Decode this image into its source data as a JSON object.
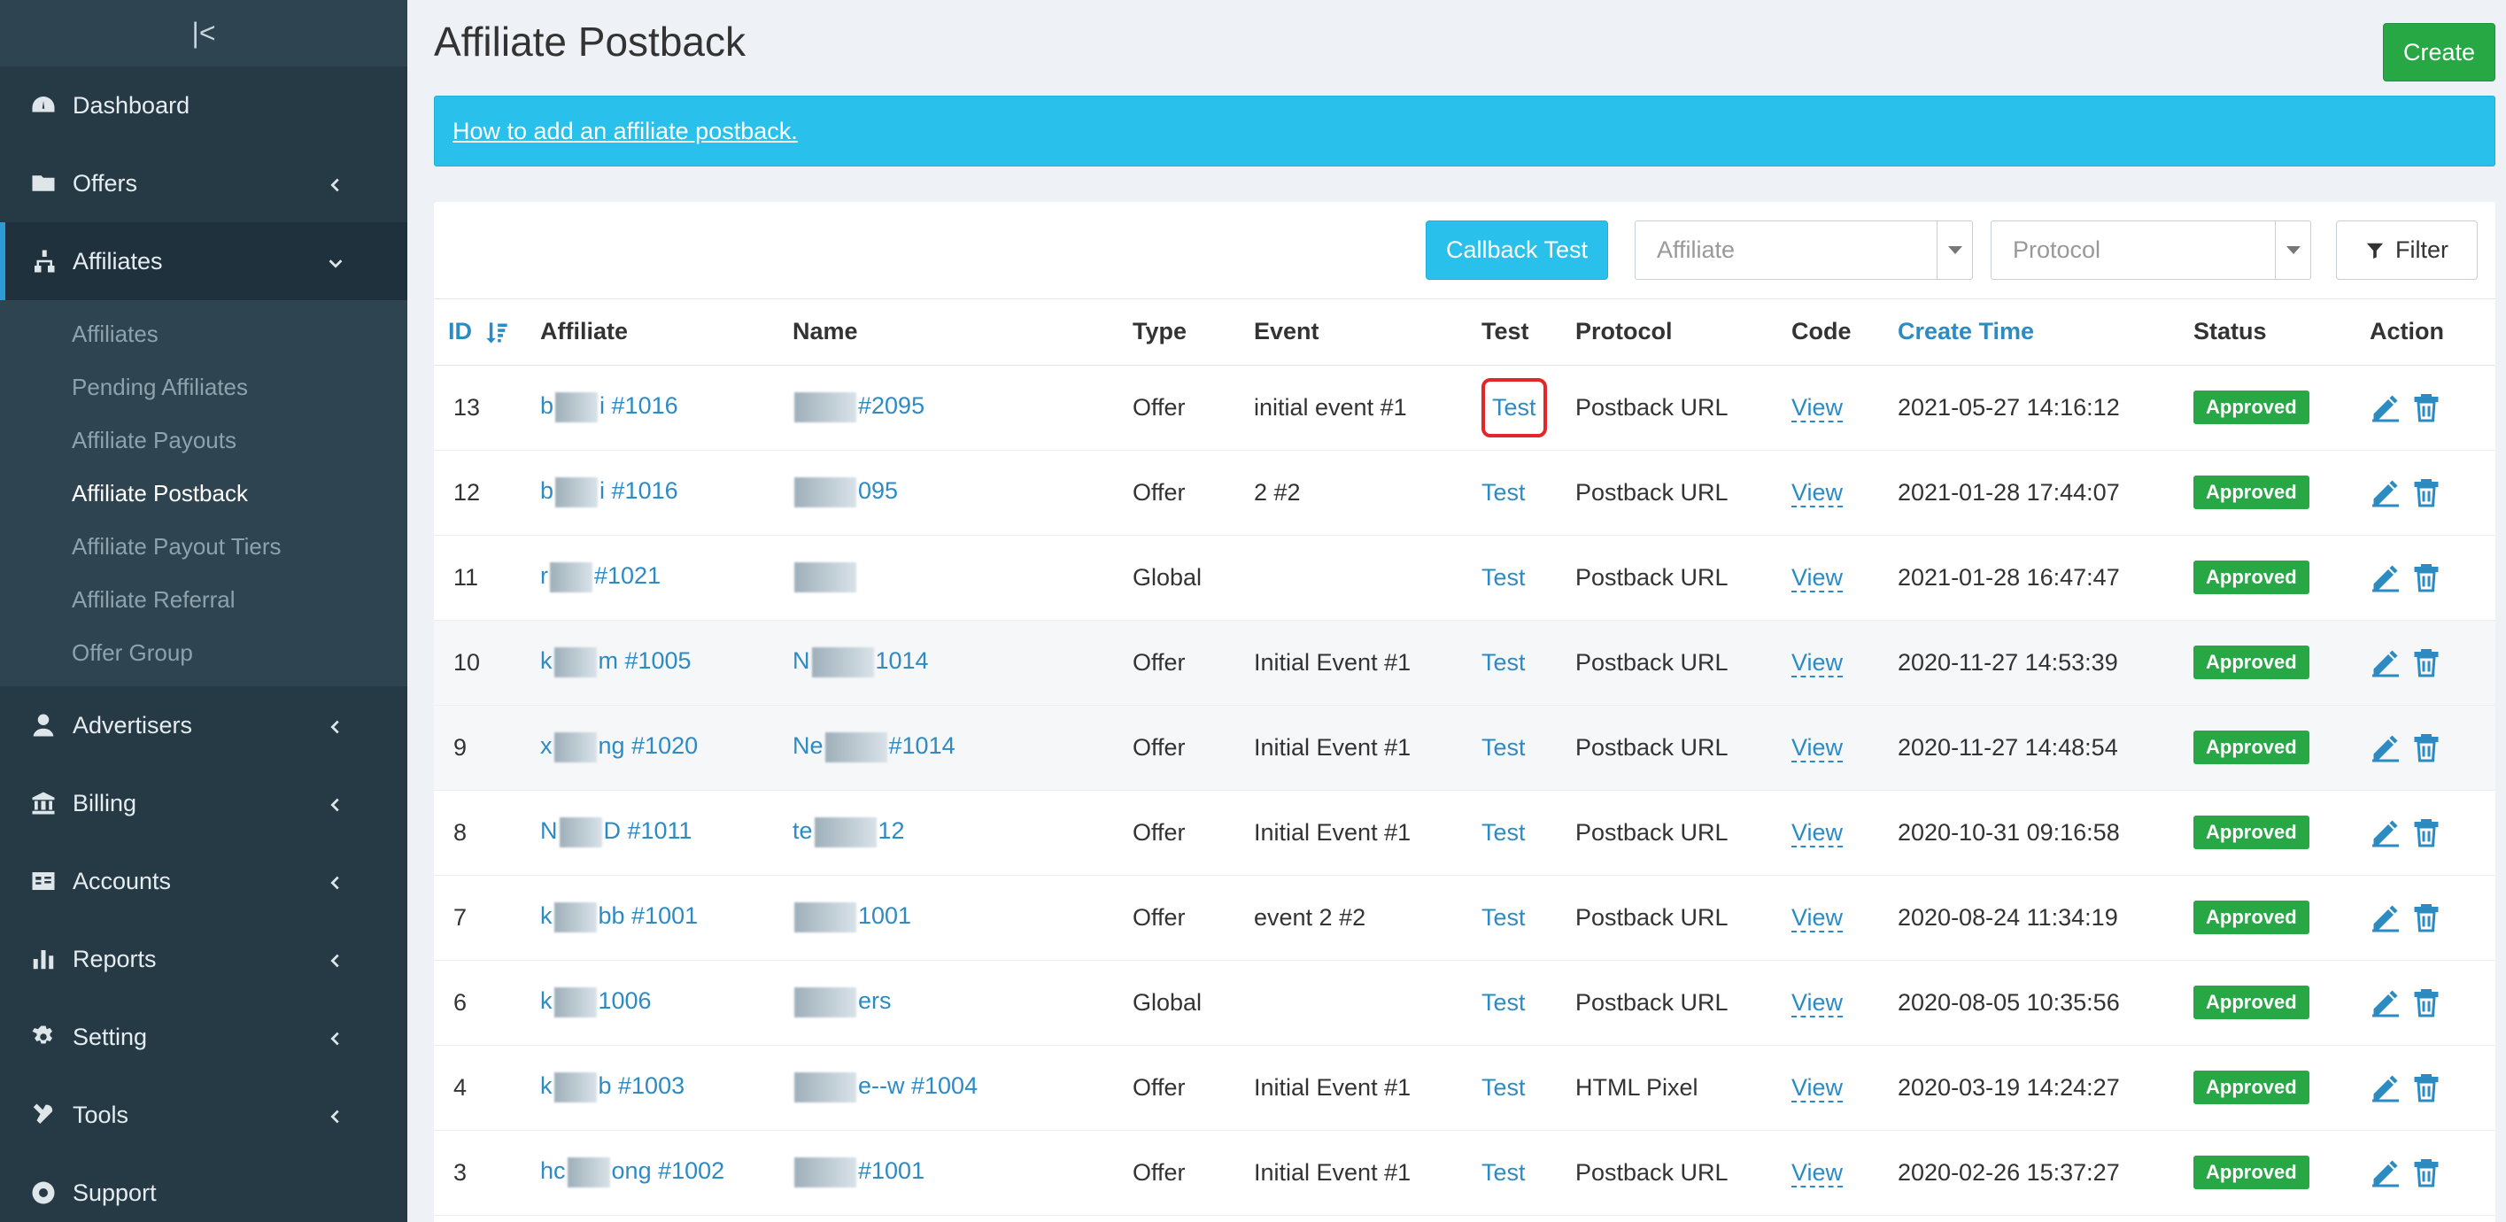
{
  "sidebar": {
    "collapse_glyph": "|<",
    "items": [
      {
        "label": "Dashboard",
        "icon": "dashboard-icon"
      },
      {
        "label": "Offers",
        "icon": "folder-icon"
      },
      {
        "label": "Affiliates",
        "icon": "sitemap-icon"
      },
      {
        "label": "Advertisers",
        "icon": "user-icon"
      },
      {
        "label": "Billing",
        "icon": "bank-icon"
      },
      {
        "label": "Accounts",
        "icon": "id-card-icon"
      },
      {
        "label": "Reports",
        "icon": "bar-chart-icon"
      },
      {
        "label": "Setting",
        "icon": "gear-icon"
      },
      {
        "label": "Tools",
        "icon": "tools-icon"
      },
      {
        "label": "Support",
        "icon": "lifebuoy-icon"
      }
    ],
    "submenu": [
      "Affiliates",
      "Pending Affiliates",
      "Affiliate Payouts",
      "Affiliate Postback",
      "Affiliate Payout Tiers",
      "Affiliate Referral",
      "Offer Group"
    ]
  },
  "header": {
    "title": "Affiliate Postback",
    "create_label": "Create"
  },
  "info": {
    "link_text": "How to add an affiliate postback."
  },
  "toolbar": {
    "callback_test_label": "Callback Test",
    "affiliate_placeholder": "Affiliate",
    "protocol_placeholder": "Protocol",
    "filter_label": "Filter"
  },
  "table": {
    "columns": [
      "ID",
      "Affiliate",
      "Name",
      "Type",
      "Event",
      "Test",
      "Protocol",
      "Code",
      "Create Time",
      "Status",
      "Action"
    ],
    "rows": [
      {
        "id": "13",
        "aff_a": "b",
        "aff_b": "i #1016",
        "name_a": "",
        "name_b": "#2095",
        "type": "Offer",
        "event": "initial event #1",
        "test": "Test",
        "protocol": "Postback URL",
        "code": "View",
        "time": "2021-05-27 14:16:12",
        "status": "Approved"
      },
      {
        "id": "12",
        "aff_a": "b",
        "aff_b": "i #1016",
        "name_a": "",
        "name_b": "095",
        "type": "Offer",
        "event": "2 #2",
        "test": "Test",
        "protocol": "Postback URL",
        "code": "View",
        "time": "2021-01-28 17:44:07",
        "status": "Approved"
      },
      {
        "id": "11",
        "aff_a": "r",
        "aff_b": "#1021",
        "name_a": "",
        "name_b": "",
        "type": "Global",
        "event": "",
        "test": "Test",
        "protocol": "Postback URL",
        "code": "View",
        "time": "2021-01-28 16:47:47",
        "status": "Approved"
      },
      {
        "id": "10",
        "aff_a": "k",
        "aff_b": "m #1005",
        "name_a": "N",
        "name_b": "1014",
        "type": "Offer",
        "event": "Initial Event #1",
        "test": "Test",
        "protocol": "Postback URL",
        "code": "View",
        "time": "2020-11-27 14:53:39",
        "status": "Approved"
      },
      {
        "id": "9",
        "aff_a": "x",
        "aff_b": "ng #1020",
        "name_a": "Ne",
        "name_b": "#1014",
        "type": "Offer",
        "event": "Initial Event #1",
        "test": "Test",
        "protocol": "Postback URL",
        "code": "View",
        "time": "2020-11-27 14:48:54",
        "status": "Approved"
      },
      {
        "id": "8",
        "aff_a": "N",
        "aff_b": "D #1011",
        "name_a": "te",
        "name_b": "12",
        "type": "Offer",
        "event": "Initial Event #1",
        "test": "Test",
        "protocol": "Postback URL",
        "code": "View",
        "time": "2020-10-31 09:16:58",
        "status": "Approved"
      },
      {
        "id": "7",
        "aff_a": "k",
        "aff_b": "bb #1001",
        "name_a": "",
        "name_b": "1001",
        "type": "Offer",
        "event": "event 2 #2",
        "test": "Test",
        "protocol": "Postback URL",
        "code": "View",
        "time": "2020-08-24 11:34:19",
        "status": "Approved"
      },
      {
        "id": "6",
        "aff_a": "k",
        "aff_b": "1006",
        "name_a": "",
        "name_b": "ers",
        "type": "Global",
        "event": "",
        "test": "Test",
        "protocol": "Postback URL",
        "code": "View",
        "time": "2020-08-05 10:35:56",
        "status": "Approved"
      },
      {
        "id": "4",
        "aff_a": "k",
        "aff_b": "b #1003",
        "name_a": "",
        "name_b": "e--w #1004",
        "type": "Offer",
        "event": "Initial Event #1",
        "test": "Test",
        "protocol": "HTML Pixel",
        "code": "View",
        "time": "2020-03-19 14:24:27",
        "status": "Approved"
      },
      {
        "id": "3",
        "aff_a": "hc",
        "aff_b": "ong #1002",
        "name_a": "",
        "name_b": "#1001",
        "type": "Offer",
        "event": "Initial Event #1",
        "test": "Test",
        "protocol": "Postback URL",
        "code": "View",
        "time": "2020-02-26 15:37:27",
        "status": "Approved"
      }
    ]
  },
  "colors": {
    "sidebar_bg": "#263a46",
    "accent_blue": "#29c0ec",
    "link_blue": "#2d8bc4",
    "success_green": "#28a745",
    "highlight_red": "#e3262a"
  }
}
